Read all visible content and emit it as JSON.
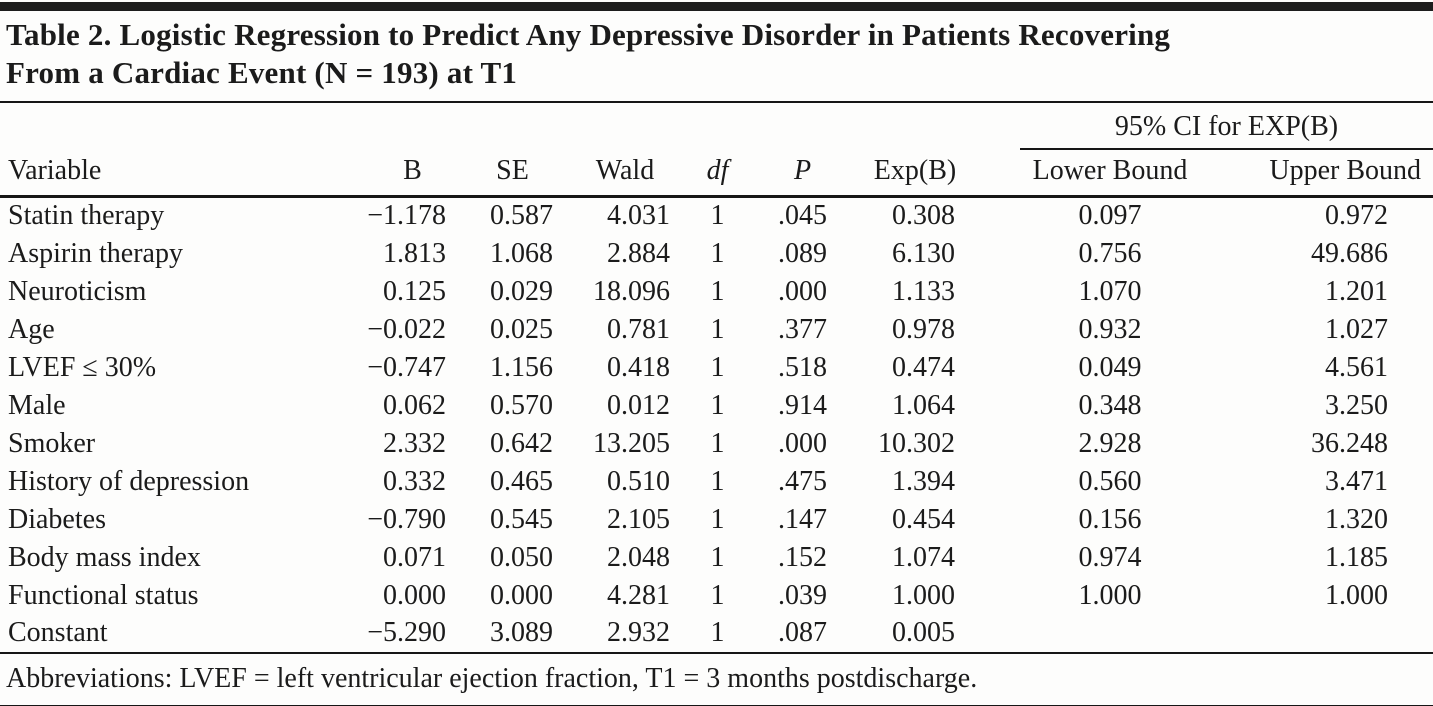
{
  "page": {
    "title_line1": "Table 2. Logistic Regression to Predict Any Depressive Disorder in Patients Recovering",
    "title_line2": "From a Cardiac Event (N = 193) at T1"
  },
  "table": {
    "ci_spanner": "95% CI for EXP(B)",
    "headers": [
      "Variable",
      "B",
      "SE",
      "Wald",
      "df",
      "P",
      "Exp(B)",
      "Lower Bound",
      "Upper Bound"
    ],
    "rows": [
      {
        "variable": "Statin therapy",
        "b": "−1.178",
        "se": "0.587",
        "wald": "4.031",
        "df": "1",
        "p": ".045",
        "exp_b": "0.308",
        "lower": "0.097",
        "upper": "0.972"
      },
      {
        "variable": "Aspirin therapy",
        "b": "1.813",
        "se": "1.068",
        "wald": "2.884",
        "df": "1",
        "p": ".089",
        "exp_b": "6.130",
        "lower": "0.756",
        "upper": "49.686"
      },
      {
        "variable": "Neuroticism",
        "b": "0.125",
        "se": "0.029",
        "wald": "18.096",
        "df": "1",
        "p": ".000",
        "exp_b": "1.133",
        "lower": "1.070",
        "upper": "1.201"
      },
      {
        "variable": "Age",
        "b": "−0.022",
        "se": "0.025",
        "wald": "0.781",
        "df": "1",
        "p": ".377",
        "exp_b": "0.978",
        "lower": "0.932",
        "upper": "1.027"
      },
      {
        "variable": "LVEF ≤ 30%",
        "b": "−0.747",
        "se": "1.156",
        "wald": "0.418",
        "df": "1",
        "p": ".518",
        "exp_b": "0.474",
        "lower": "0.049",
        "upper": "4.561"
      },
      {
        "variable": "Male",
        "b": "0.062",
        "se": "0.570",
        "wald": "0.012",
        "df": "1",
        "p": ".914",
        "exp_b": "1.064",
        "lower": "0.348",
        "upper": "3.250"
      },
      {
        "variable": "Smoker",
        "b": "2.332",
        "se": "0.642",
        "wald": "13.205",
        "df": "1",
        "p": ".000",
        "exp_b": "10.302",
        "lower": "2.928",
        "upper": "36.248"
      },
      {
        "variable": "History of depression",
        "b": "0.332",
        "se": "0.465",
        "wald": "0.510",
        "df": "1",
        "p": ".475",
        "exp_b": "1.394",
        "lower": "0.560",
        "upper": "3.471"
      },
      {
        "variable": "Diabetes",
        "b": "−0.790",
        "se": "0.545",
        "wald": "2.105",
        "df": "1",
        "p": ".147",
        "exp_b": "0.454",
        "lower": "0.156",
        "upper": "1.320"
      },
      {
        "variable": "Body mass index",
        "b": "0.071",
        "se": "0.050",
        "wald": "2.048",
        "df": "1",
        "p": ".152",
        "exp_b": "1.074",
        "lower": "0.974",
        "upper": "1.185"
      },
      {
        "variable": "Functional status",
        "b": "0.000",
        "se": "0.000",
        "wald": "4.281",
        "df": "1",
        "p": ".039",
        "exp_b": "1.000",
        "lower": "1.000",
        "upper": "1.000"
      },
      {
        "variable": "Constant",
        "b": "−5.290",
        "se": "3.089",
        "wald": "2.932",
        "df": "1",
        "p": ".087",
        "exp_b": "0.005",
        "lower": "",
        "upper": ""
      }
    ]
  },
  "footnote": "Abbreviations: LVEF = left ventricular ejection fraction, T1 = 3 months postdischarge."
}
